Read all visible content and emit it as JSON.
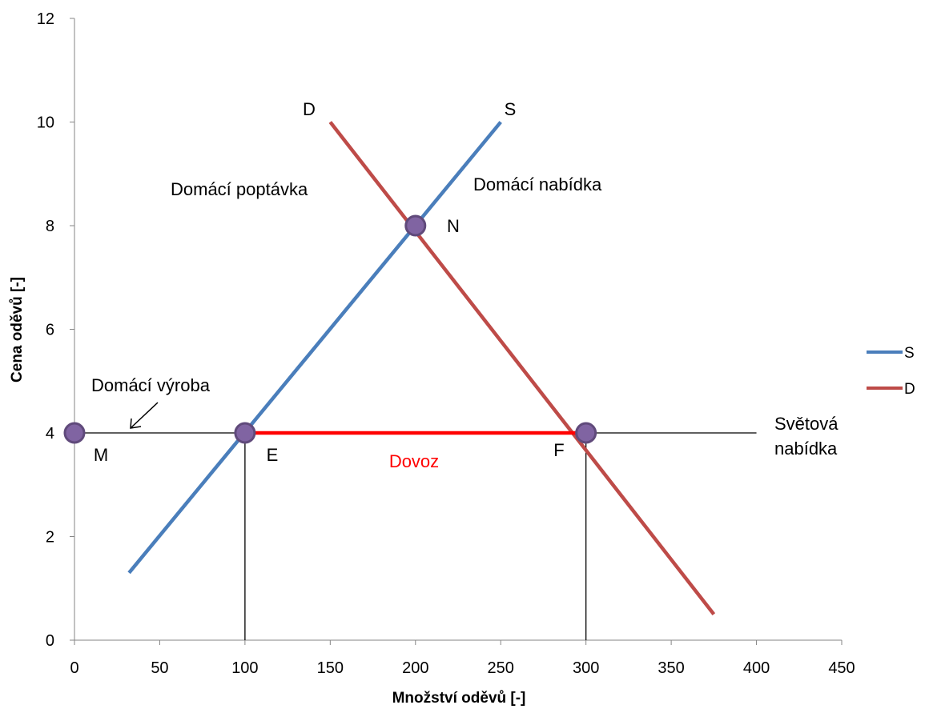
{
  "chart_data": {
    "type": "line",
    "xlabel": "Množství oděvů [-]",
    "ylabel": "Cena oděvů [-]",
    "xlim": [
      0,
      450
    ],
    "ylim": [
      0,
      12
    ],
    "x_ticks": [
      "0",
      "50",
      "100",
      "150",
      "200",
      "250",
      "300",
      "350",
      "400",
      "450"
    ],
    "y_ticks": [
      "0",
      "2",
      "4",
      "6",
      "8",
      "10",
      "12"
    ],
    "grid": false,
    "legend_position": "right",
    "series": [
      {
        "name": "S",
        "color": "#4a7ebb",
        "points": [
          [
            32,
            1.3
          ],
          [
            250,
            10
          ]
        ]
      },
      {
        "name": "D",
        "color": "#be4b48",
        "points": [
          [
            150,
            10
          ],
          [
            375,
            0.5
          ]
        ]
      }
    ],
    "reference_lines": [
      {
        "label": "Světová nabídka",
        "y": 4,
        "x_range": [
          0,
          400
        ],
        "color": "#000000"
      },
      {
        "x": 100,
        "y_range": [
          0,
          4
        ],
        "color": "#000000"
      },
      {
        "x": 300,
        "y_range": [
          0,
          4
        ],
        "color": "#000000"
      }
    ],
    "import_segment": {
      "label": "Dovoz",
      "x_range": [
        100,
        300
      ],
      "y": 4,
      "color": "#ff0000"
    },
    "points": [
      {
        "label": "M",
        "x": 0,
        "y": 4
      },
      {
        "label": "E",
        "x": 100,
        "y": 4
      },
      {
        "label": "F",
        "x": 300,
        "y": 4
      },
      {
        "label": "N",
        "x": 200,
        "y": 8
      }
    ],
    "annotations": {
      "curve_label_D": "D",
      "curve_label_S": "S",
      "domestic_demand": "Domácí poptávka",
      "domestic_supply": "Domácí nabídka",
      "domestic_production": "Domácí výroba",
      "world_supply_line1": "Světová",
      "world_supply_line2": "nabídka",
      "imports": "Dovoz"
    },
    "marker_color": "#8064a2",
    "marker_border_color": "#604a7b"
  }
}
